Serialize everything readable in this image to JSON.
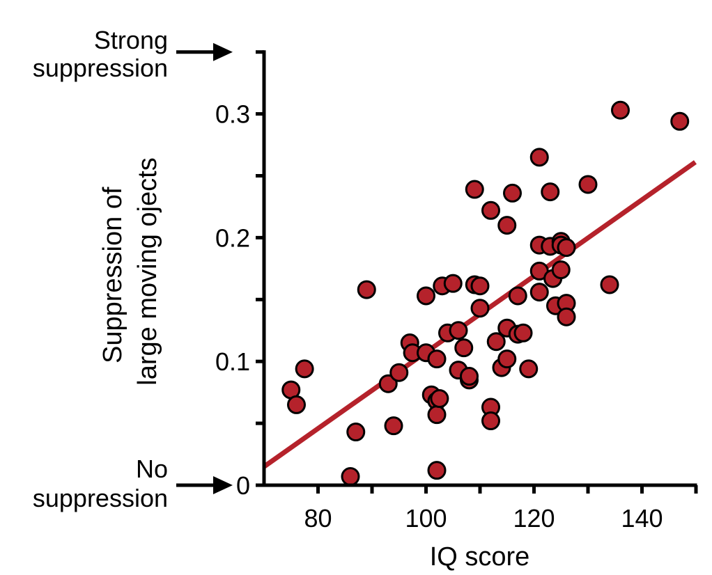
{
  "chart_data": {
    "type": "scatter",
    "xlabel": "IQ score",
    "ylabel_lines": [
      "Suppression of",
      "large moving ojects"
    ],
    "xlim": [
      70,
      150
    ],
    "ylim": [
      0,
      0.35
    ],
    "x_ticks": [
      80,
      100,
      120,
      140
    ],
    "x_tick_labels": [
      "80",
      "100",
      "120",
      "140"
    ],
    "y_ticks": [
      0,
      0.1,
      0.2,
      0.3
    ],
    "y_tick_labels": [
      "0",
      "0.1",
      "0.2",
      "0.3"
    ],
    "annotations": {
      "strong": {
        "lines": [
          "Strong",
          "suppression"
        ],
        "y": 0.35
      },
      "none": {
        "lines": [
          "No",
          "suppression"
        ],
        "y": 0
      }
    },
    "colors": {
      "point_fill": "#b5222b",
      "point_stroke": "#000000",
      "trend_line": "#b5222b",
      "axis": "#000000"
    },
    "trend_line": {
      "x": [
        70,
        150
      ],
      "y": [
        0.015,
        0.261
      ]
    },
    "points": [
      {
        "x": 75,
        "y": 0.077
      },
      {
        "x": 76,
        "y": 0.065
      },
      {
        "x": 77.5,
        "y": 0.094
      },
      {
        "x": 86,
        "y": 0.007
      },
      {
        "x": 87,
        "y": 0.043
      },
      {
        "x": 89,
        "y": 0.158
      },
      {
        "x": 93,
        "y": 0.082
      },
      {
        "x": 94,
        "y": 0.048
      },
      {
        "x": 95,
        "y": 0.091
      },
      {
        "x": 97,
        "y": 0.115
      },
      {
        "x": 97.5,
        "y": 0.107
      },
      {
        "x": 100,
        "y": 0.153
      },
      {
        "x": 100,
        "y": 0.107
      },
      {
        "x": 101,
        "y": 0.073
      },
      {
        "x": 102,
        "y": 0.102
      },
      {
        "x": 102,
        "y": 0.068
      },
      {
        "x": 102,
        "y": 0.057
      },
      {
        "x": 102,
        "y": 0.012
      },
      {
        "x": 102.5,
        "y": 0.07
      },
      {
        "x": 103,
        "y": 0.161
      },
      {
        "x": 104,
        "y": 0.123
      },
      {
        "x": 105,
        "y": 0.163
      },
      {
        "x": 106,
        "y": 0.093
      },
      {
        "x": 106,
        "y": 0.125
      },
      {
        "x": 107,
        "y": 0.111
      },
      {
        "x": 108,
        "y": 0.085
      },
      {
        "x": 108,
        "y": 0.088
      },
      {
        "x": 109,
        "y": 0.239
      },
      {
        "x": 109,
        "y": 0.162
      },
      {
        "x": 110,
        "y": 0.161
      },
      {
        "x": 110,
        "y": 0.143
      },
      {
        "x": 112,
        "y": 0.222
      },
      {
        "x": 112,
        "y": 0.063
      },
      {
        "x": 112,
        "y": 0.052
      },
      {
        "x": 113,
        "y": 0.116
      },
      {
        "x": 114,
        "y": 0.095
      },
      {
        "x": 115,
        "y": 0.21
      },
      {
        "x": 115,
        "y": 0.127
      },
      {
        "x": 115,
        "y": 0.102
      },
      {
        "x": 116,
        "y": 0.236
      },
      {
        "x": 117,
        "y": 0.153
      },
      {
        "x": 117,
        "y": 0.122
      },
      {
        "x": 118,
        "y": 0.123
      },
      {
        "x": 119,
        "y": 0.094
      },
      {
        "x": 121,
        "y": 0.265
      },
      {
        "x": 121,
        "y": 0.194
      },
      {
        "x": 121,
        "y": 0.173
      },
      {
        "x": 121,
        "y": 0.156
      },
      {
        "x": 123,
        "y": 0.237
      },
      {
        "x": 123,
        "y": 0.193
      },
      {
        "x": 123.5,
        "y": 0.167
      },
      {
        "x": 124,
        "y": 0.145
      },
      {
        "x": 125,
        "y": 0.197
      },
      {
        "x": 125,
        "y": 0.194
      },
      {
        "x": 125,
        "y": 0.174
      },
      {
        "x": 126,
        "y": 0.192
      },
      {
        "x": 126,
        "y": 0.147
      },
      {
        "x": 126,
        "y": 0.136
      },
      {
        "x": 130,
        "y": 0.243
      },
      {
        "x": 134,
        "y": 0.162
      },
      {
        "x": 136,
        "y": 0.303
      },
      {
        "x": 147,
        "y": 0.294
      }
    ]
  }
}
